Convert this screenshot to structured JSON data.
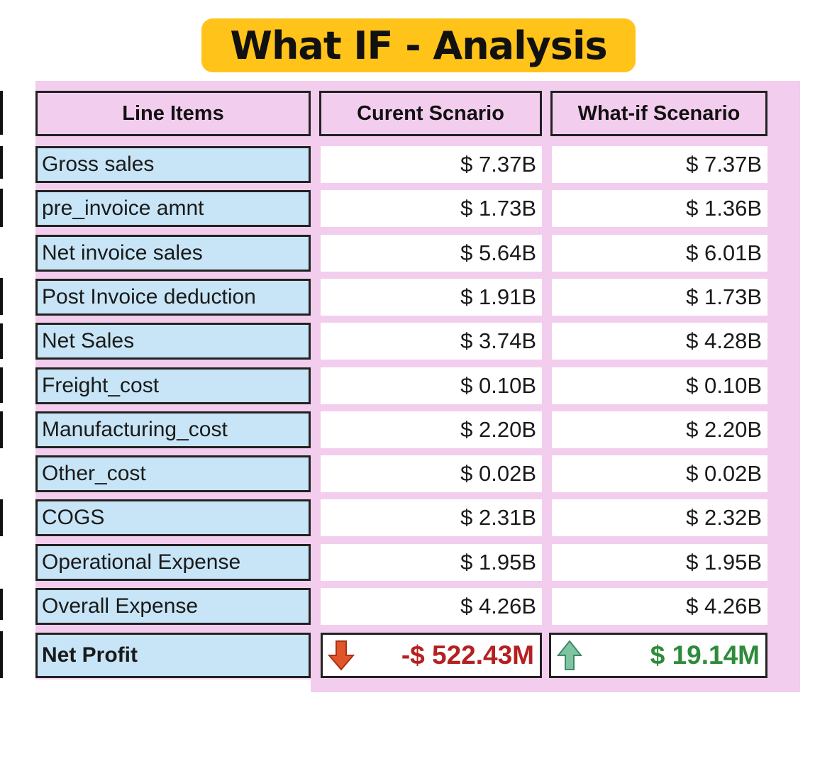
{
  "title": "What IF - Analysis",
  "headers": {
    "line_items": "Line Items",
    "current": "Curent Scnario",
    "what_if": "What-if Scenario"
  },
  "rows": [
    {
      "label": "Gross sales",
      "current": "$ 7.37B",
      "what_if": "$ 7.37B"
    },
    {
      "label": "pre_invoice amnt",
      "current": "$ 1.73B",
      "what_if": "$ 1.36B"
    },
    {
      "label": "Net invoice sales",
      "current": "$ 5.64B",
      "what_if": "$ 6.01B"
    },
    {
      "label": "Post Invoice deduction",
      "current": "$ 1.91B",
      "what_if": "$ 1.73B"
    },
    {
      "label": "Net Sales",
      "current": "$ 3.74B",
      "what_if": "$ 4.28B"
    },
    {
      "label": "Freight_cost",
      "current": "$ 0.10B",
      "what_if": "$ 0.10B"
    },
    {
      "label": "Manufacturing_cost",
      "current": "$ 2.20B",
      "what_if": "$ 2.20B"
    },
    {
      "label": "Other_cost",
      "current": "$ 0.02B",
      "what_if": "$ 0.02B"
    },
    {
      "label": "COGS",
      "current": "$ 2.31B",
      "what_if": "$ 2.32B"
    },
    {
      "label": "Operational Expense",
      "current": "$ 1.95B",
      "what_if": "$ 1.95B"
    },
    {
      "label": "Overall Expense",
      "current": "$ 4.26B",
      "what_if": "$ 4.26B"
    }
  ],
  "net_profit": {
    "label": "Net Profit",
    "current": "-$ 522.43M",
    "what_if": "$ 19.14M",
    "current_icon": "arrow-down-icon",
    "what_if_icon": "arrow-up-icon"
  },
  "colors": {
    "title_bg": "#ffc31a",
    "panel_pink": "#f3cdee",
    "label_blue": "#c7e5f6",
    "negative": "#b52121",
    "positive": "#2e8b3a"
  }
}
